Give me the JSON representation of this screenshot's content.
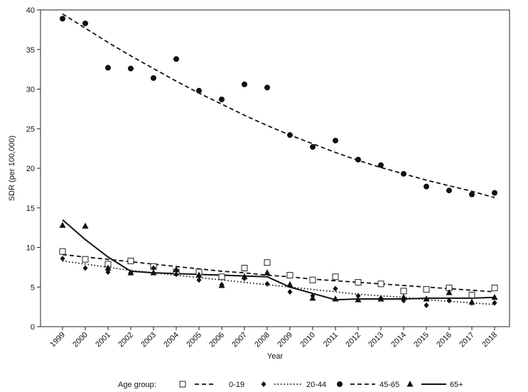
{
  "chart_data": {
    "type": "scatter",
    "xlabel": "Year",
    "ylabel": "SDR (per 100,000)",
    "ylim": [
      0,
      40
    ],
    "yticks": [
      0,
      5,
      10,
      15,
      20,
      25,
      30,
      35,
      40
    ],
    "categories": [
      "1999",
      "2000",
      "2001",
      "2002",
      "2003",
      "2004",
      "2005",
      "2006",
      "2007",
      "2008",
      "2009",
      "2010",
      "2011",
      "2012",
      "2013",
      "2014",
      "2015",
      "2016",
      "2017",
      "2018"
    ],
    "grid": false,
    "legend_title": "Age group:",
    "legend_position": "bottom",
    "series": [
      {
        "name": "0-19",
        "marker": "open-square",
        "line": "dashed",
        "values": [
          9.5,
          8.5,
          7.9,
          8.3,
          7.6,
          6.9,
          6.9,
          6.3,
          7.4,
          8.1,
          6.5,
          5.9,
          6.3,
          5.6,
          5.4,
          4.5,
          4.7,
          4.9,
          4.0,
          4.9
        ],
        "trend": [
          9.1,
          8.8,
          8.5,
          8.2,
          7.9,
          7.6,
          7.3,
          7.0,
          6.8,
          6.5,
          6.3,
          6.0,
          5.8,
          5.6,
          5.4,
          5.2,
          5.0,
          4.8,
          4.6,
          4.4
        ]
      },
      {
        "name": "20-44",
        "marker": "diamond",
        "line": "dotted",
        "values": [
          8.6,
          7.4,
          6.9,
          6.8,
          7.4,
          6.6,
          5.9,
          5.3,
          6.1,
          5.4,
          4.4,
          3.9,
          4.8,
          3.9,
          3.6,
          3.3,
          2.7,
          3.3,
          3.0,
          3.0
        ],
        "trend": [
          8.3,
          7.9,
          7.5,
          7.1,
          6.8,
          6.5,
          6.2,
          5.9,
          5.6,
          5.3,
          5.0,
          4.7,
          4.4,
          4.1,
          3.9,
          3.7,
          3.4,
          3.2,
          3.0,
          2.8
        ]
      },
      {
        "name": "45-65",
        "marker": "filled-circle",
        "line": "dashed",
        "values": [
          38.9,
          38.3,
          32.7,
          32.6,
          31.4,
          33.8,
          29.8,
          28.7,
          30.6,
          30.2,
          24.2,
          22.7,
          23.5,
          21.1,
          20.4,
          19.3,
          17.7,
          17.2,
          16.7,
          16.9
        ],
        "trend": [
          39.5,
          37.7,
          35.9,
          34.2,
          32.6,
          31.0,
          29.5,
          28.1,
          26.7,
          25.4,
          24.2,
          23.1,
          22.0,
          21.0,
          20.1,
          19.3,
          18.5,
          17.8,
          17.1,
          16.3
        ]
      },
      {
        "name": "65+",
        "marker": "filled-triangle",
        "line": "solid",
        "values": [
          12.8,
          12.7,
          7.4,
          6.8,
          6.8,
          7.2,
          6.5,
          5.2,
          6.3,
          6.8,
          5.3,
          3.6,
          3.5,
          3.4,
          3.5,
          3.7,
          3.5,
          4.3,
          3.1,
          3.7
        ],
        "trend": [
          13.5,
          11.0,
          8.8,
          7.0,
          6.8,
          6.7,
          6.6,
          6.5,
          6.4,
          6.3,
          5.0,
          4.2,
          3.4,
          3.5,
          3.5,
          3.5,
          3.6,
          3.6,
          3.6,
          3.7
        ]
      }
    ]
  }
}
